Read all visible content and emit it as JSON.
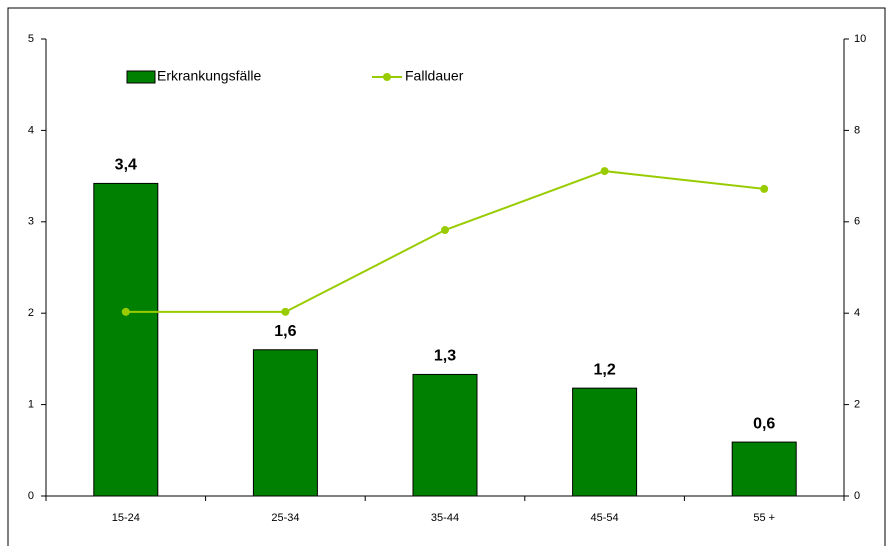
{
  "chart_data": {
    "type": "bar_line",
    "categories": [
      "15-24",
      "25-34",
      "35-44",
      "45-54",
      "55 +"
    ],
    "series": [
      {
        "name": "Erkrankungsfälle",
        "type": "bar",
        "color": "#008000",
        "values": [
          3.42,
          1.6,
          1.33,
          1.18,
          0.59
        ],
        "value_labels": [
          "3,4",
          "1,6",
          "1,3",
          "1,2",
          "0,6"
        ]
      },
      {
        "name": "Falldauer",
        "type": "line",
        "axis": "y2",
        "color": "#99cc00",
        "values": [
          4.03,
          4.03,
          5.82,
          7.11,
          6.72
        ]
      }
    ],
    "ylim": [
      0,
      5
    ],
    "yticks": [
      0,
      1,
      2,
      3,
      4,
      5
    ],
    "y2lim": [
      0,
      10
    ],
    "y2ticks": [
      0,
      2,
      4,
      6,
      8,
      10
    ],
    "legend": "top"
  }
}
